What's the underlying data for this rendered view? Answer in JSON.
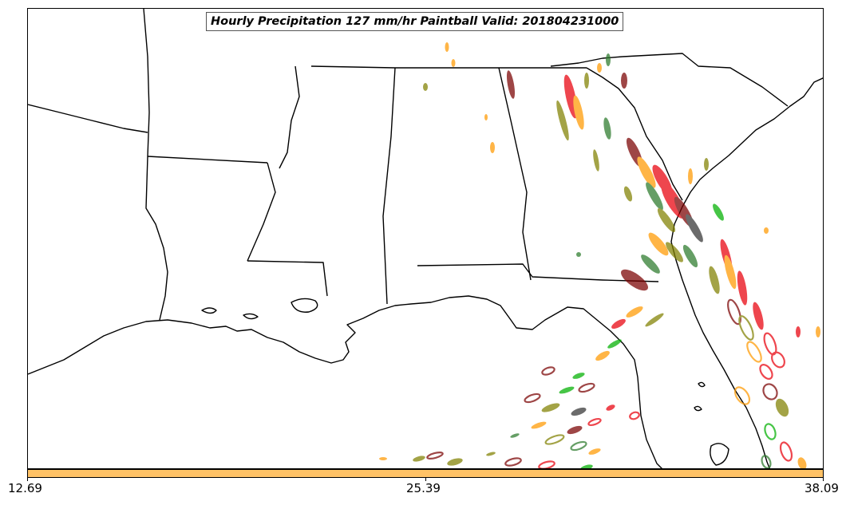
{
  "title": "Hourly Precipitation 127 mm/hr Paintball Valid: 201804231000",
  "colorbar": {
    "color": "#ffc266",
    "ticks": [
      "12.69",
      "25.39",
      "38.09"
    ]
  },
  "member_colors": [
    "#e8000b",
    "#00b000",
    "#2a7a2a",
    "#7a0000",
    "#808000",
    "#ff9900",
    "#333333"
  ],
  "map_features": [
    "state-borders",
    "coastline",
    "paintball-contours"
  ]
}
